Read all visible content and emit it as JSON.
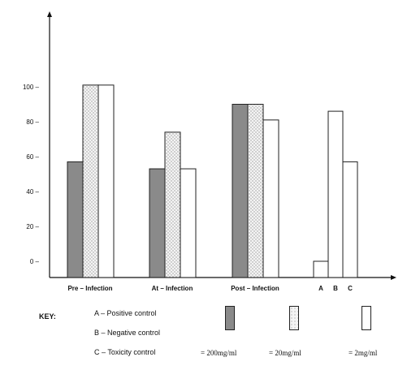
{
  "chart_data": {
    "type": "bar",
    "categories": [
      "Pre – Infection",
      "At – Infection",
      "Post – Infection"
    ],
    "series": [
      {
        "name": "200mg/ml",
        "values": [
          57,
          53,
          90
        ]
      },
      {
        "name": "20mg/ml",
        "values": [
          101,
          74,
          90
        ]
      },
      {
        "name": "2mg/ml",
        "values": [
          101,
          53,
          81
        ]
      }
    ],
    "controls": {
      "categories": [
        "A",
        "B",
        "C"
      ],
      "values": [
        0,
        86,
        57
      ]
    },
    "yticks": [
      "100 –",
      "80 –",
      "60 –",
      "40 –",
      "20 –",
      "0 –"
    ],
    "ytick_values": [
      100,
      80,
      60,
      40,
      20,
      0
    ],
    "ylim": [
      -9,
      138
    ],
    "title": "",
    "xlabel": "",
    "ylabel": "",
    "grid": false,
    "colors": {
      "dark": "#8a8a8a",
      "dotted": "#f3f3f3",
      "white": "#ffffff",
      "axis": "#111111"
    }
  },
  "key": {
    "title": "KEY:",
    "lines": [
      "A – Positive control",
      "B – Negative control",
      "C – Toxicity control"
    ],
    "swatch_labels": [
      "= 200mg/ml",
      "= 20mg/ml",
      "= 2mg/ml"
    ]
  }
}
